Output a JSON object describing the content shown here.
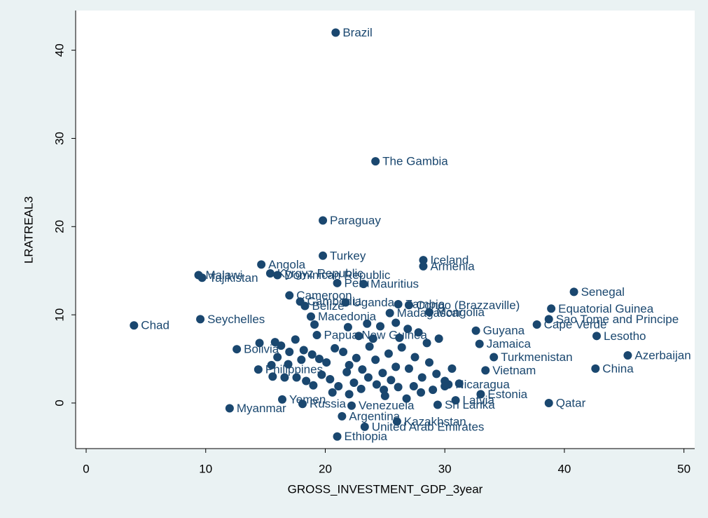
{
  "chart_data": {
    "type": "scatter",
    "xlabel": "GROSS_INVESTMENT_GDP_3year",
    "ylabel": "LRATREAL3",
    "xlim": [
      -0.88,
      50.9
    ],
    "ylim": [
      -5.17,
      44.5
    ],
    "xticks": [
      0,
      10,
      20,
      30,
      40,
      50
    ],
    "yticks": [
      0,
      10,
      20,
      30,
      40
    ],
    "color": "#1a476f",
    "x": [
      20.87,
      24.2,
      19.8,
      19.8,
      28.2,
      28.2,
      14.65,
      9.4,
      9.7,
      15.4,
      16.0,
      21.0,
      23.2,
      40.8,
      17.0,
      17.9,
      21.7,
      26.1,
      27.0,
      18.3,
      38.9,
      25.4,
      28.7,
      18.8,
      38.7,
      9.55,
      4.0,
      37.7,
      32.6,
      42.7,
      19.3,
      32.9,
      45.3,
      34.1,
      42.6,
      33.4,
      12.6,
      14.4,
      30.3,
      33.0,
      30.9,
      38.7,
      16.4,
      18.1,
      12.0,
      29.4,
      22.2,
      21.4,
      26.0,
      23.3,
      21.0,
      14.5,
      15.8,
      16.3,
      17.5,
      18.2,
      18.9,
      19.5,
      20.1,
      20.8,
      21.5,
      22.0,
      22.6,
      23.1,
      23.7,
      24.2,
      24.8,
      25.3,
      25.9,
      26.4,
      27.0,
      27.5,
      28.1,
      28.7,
      29.3,
      30.0,
      30.6,
      31.2,
      16.9,
      17.6,
      18.4,
      19.0,
      19.7,
      20.4,
      21.1,
      21.8,
      22.4,
      23.0,
      23.6,
      24.3,
      24.9,
      25.5,
      26.1,
      26.8,
      27.4,
      28.0,
      29.0,
      30.0,
      15.5,
      16.0,
      17.0,
      18.0,
      19.1,
      21.9,
      23.5,
      24.6,
      25.9,
      26.9,
      22.8,
      24.0,
      26.2,
      28.5,
      29.5,
      27.8,
      15.6,
      16.6,
      20.6,
      22.0,
      25.0
    ],
    "values": [
      42.0,
      27.4,
      20.7,
      16.7,
      16.2,
      15.5,
      15.7,
      14.5,
      14.2,
      14.7,
      14.5,
      13.6,
      13.5,
      12.6,
      12.2,
      11.5,
      11.4,
      11.2,
      11.1,
      11.0,
      10.7,
      10.2,
      10.3,
      9.8,
      9.5,
      9.5,
      8.8,
      8.9,
      8.2,
      7.6,
      7.7,
      6.7,
      5.4,
      5.2,
      3.9,
      3.7,
      6.1,
      3.8,
      2.1,
      1.0,
      0.3,
      0.0,
      0.4,
      -0.1,
      -0.6,
      -0.2,
      -0.3,
      -1.5,
      -2.1,
      -2.7,
      -3.8,
      6.8,
      6.9,
      6.5,
      7.2,
      6.0,
      5.5,
      5.0,
      4.6,
      6.2,
      5.8,
      4.3,
      5.1,
      3.8,
      6.4,
      4.9,
      3.4,
      5.6,
      4.1,
      6.3,
      3.9,
      5.2,
      2.9,
      4.6,
      3.3,
      2.5,
      3.9,
      2.2,
      4.4,
      2.9,
      2.5,
      2.0,
      3.2,
      2.7,
      1.9,
      3.5,
      2.3,
      1.6,
      2.9,
      2.1,
      1.5,
      2.6,
      1.8,
      0.5,
      1.9,
      1.2,
      1.5,
      1.9,
      4.3,
      5.2,
      5.8,
      4.9,
      8.9,
      8.6,
      9.0,
      8.7,
      9.1,
      8.4,
      7.6,
      7.3,
      7.4,
      6.8,
      7.3,
      8.0,
      3.0,
      2.9,
      1.2,
      1.0,
      0.8
    ],
    "labels": [
      "Brazil",
      "The Gambia",
      "Paraguay",
      "Turkey",
      "Iceland",
      "Armenia",
      "Angola",
      "Malawi",
      "Tajikistan",
      "Kyrgyz Republic",
      "Dominican Republic",
      "Peru",
      "Mauritius",
      "Senegal",
      "Cameroon",
      "Cambodia",
      "Uganda",
      "Zambia",
      "Congo (Brazzaville)",
      "Belize",
      "Equatorial Guinea",
      "Madagascar",
      "Mongolia",
      "Macedonia",
      "Sao Tome and Principe",
      "Seychelles",
      "Chad",
      "Cape Verde",
      "Guyana",
      "Lesotho",
      "Papua New Guinea",
      "Jamaica",
      "Azerbaijan",
      "Turkmenistan",
      "China",
      "Vietnam",
      "Bolivia",
      "Philippines",
      "Nicaragua",
      "Estonia",
      "Latvia",
      "Qatar",
      "Yemen",
      "Russia",
      "Myanmar",
      "Sri Lanka",
      "Venezuela",
      "Argentina",
      "Kazakhstan",
      "United Arab Emirates",
      "Ethiopia",
      null,
      null,
      null,
      null,
      null,
      null,
      null,
      null,
      null,
      null,
      null,
      null,
      null,
      null,
      null,
      null,
      null,
      null,
      null,
      null,
      null,
      null,
      null,
      null,
      null,
      null,
      null,
      null,
      null,
      null,
      null,
      null,
      null,
      null,
      null,
      null,
      null,
      null,
      null,
      null,
      null,
      null,
      null,
      null,
      null,
      null,
      null,
      null,
      null,
      null,
      null,
      null,
      null,
      null,
      null,
      null,
      null,
      null,
      null,
      null,
      null,
      null,
      null,
      null,
      null,
      null,
      null
    ]
  }
}
